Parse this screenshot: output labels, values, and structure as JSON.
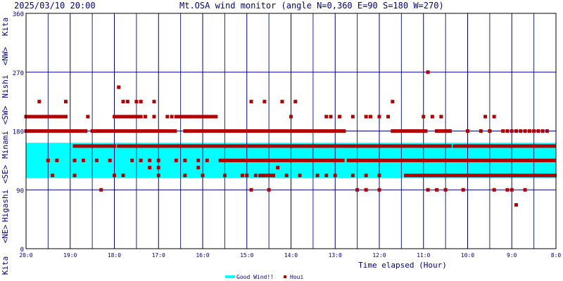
{
  "header": {
    "timestamp": "2025/03/10 20:00",
    "title": "Mt.OSA wind monitor (angle N=0,360 E=90 S=180 W=270)"
  },
  "side_labels": {
    "kita_top": "Kita",
    "nw": "<NW>",
    "nishi": "Nishi",
    "sw": "<SW>",
    "minami": "Minami",
    "se": "<SE>",
    "higashi": "Higashi",
    "ne": "<NE>",
    "kita_bottom": "Kita"
  },
  "colors": {
    "plot_bg": "#ffffff",
    "frame": "#000000",
    "grid_major": "#000080",
    "grid_minor": "#1a2a7a",
    "good_band": "#00ffff",
    "points": "#b00000",
    "title_text": "#000080"
  },
  "chart_data": {
    "type": "scatter",
    "title": "Mt.OSA wind monitor (angle N=0,360 E=90 S=180 W=270)",
    "xlabel": "Time elapsed (Hour)",
    "ylabel": "",
    "ylim": [
      0,
      360
    ],
    "xlim": [
      0,
      12
    ],
    "x_direction": "time runs backwards from 20:00 at left to 8:00 at right",
    "yticks": [
      0,
      90,
      180,
      270,
      360
    ],
    "xtick_labels": [
      "20:0",
      "19:0",
      "18:0",
      "17:0",
      "16:0",
      "15:0",
      "14:0",
      "13:0",
      "12:0",
      "11:0",
      "10:0",
      "9:0",
      "8:0"
    ],
    "grid": true,
    "legend": {
      "placement": "bottom-center",
      "entries": [
        "Good Wind!!",
        "Houi"
      ]
    },
    "good_wind_band": {
      "label": "Good Wind!!",
      "from_deg": 108,
      "to_deg": 162
    },
    "series": [
      {
        "name": "Houi",
        "runs": [
          {
            "from_h": 0.0,
            "to_h": 1.4,
            "deg": 180
          },
          {
            "from_h": 0.0,
            "to_h": 0.9,
            "deg": 202
          },
          {
            "from_h": 1.5,
            "to_h": 3.4,
            "deg": 180
          },
          {
            "from_h": 1.1,
            "to_h": 2.0,
            "deg": 157
          },
          {
            "from_h": 2.1,
            "to_h": 3.5,
            "deg": 157
          },
          {
            "from_h": 3.6,
            "to_h": 7.2,
            "deg": 180
          },
          {
            "from_h": 3.5,
            "to_h": 6.8,
            "deg": 157
          },
          {
            "from_h": 6.0,
            "to_h": 9.6,
            "deg": 157
          },
          {
            "from_h": 9.7,
            "to_h": 12.0,
            "deg": 157
          },
          {
            "from_h": 4.4,
            "to_h": 7.2,
            "deg": 135
          },
          {
            "from_h": 7.3,
            "to_h": 12.0,
            "deg": 135
          },
          {
            "from_h": 8.6,
            "to_h": 12.0,
            "deg": 112
          },
          {
            "from_h": 5.3,
            "to_h": 5.6,
            "deg": 112
          },
          {
            "from_h": 8.3,
            "to_h": 9.1,
            "deg": 180
          },
          {
            "from_h": 9.3,
            "to_h": 9.6,
            "deg": 180
          },
          {
            "from_h": 2.0,
            "to_h": 2.6,
            "deg": 202
          },
          {
            "from_h": 3.4,
            "to_h": 4.3,
            "deg": 202
          }
        ],
        "points": [
          [
            0.3,
            225
          ],
          [
            0.9,
            225
          ],
          [
            2.1,
            247
          ],
          [
            2.2,
            225
          ],
          [
            2.3,
            225
          ],
          [
            2.5,
            225
          ],
          [
            2.6,
            225
          ],
          [
            2.9,
            225
          ],
          [
            5.1,
            225
          ],
          [
            5.4,
            225
          ],
          [
            5.8,
            225
          ],
          [
            6.1,
            225
          ],
          [
            8.3,
            225
          ],
          [
            9.1,
            270
          ],
          [
            0.9,
            202
          ],
          [
            1.4,
            202
          ],
          [
            2.7,
            202
          ],
          [
            2.9,
            202
          ],
          [
            3.2,
            202
          ],
          [
            3.3,
            202
          ],
          [
            3.6,
            202
          ],
          [
            3.7,
            202
          ],
          [
            4.1,
            202
          ],
          [
            6.0,
            202
          ],
          [
            6.8,
            202
          ],
          [
            6.9,
            202
          ],
          [
            7.1,
            202
          ],
          [
            7.4,
            202
          ],
          [
            7.7,
            202
          ],
          [
            7.8,
            202
          ],
          [
            8.0,
            202
          ],
          [
            8.2,
            202
          ],
          [
            9.0,
            202
          ],
          [
            9.2,
            202
          ],
          [
            9.4,
            202
          ],
          [
            10.4,
            202
          ],
          [
            10.6,
            202
          ],
          [
            10.0,
            180
          ],
          [
            10.3,
            180
          ],
          [
            10.5,
            180
          ],
          [
            10.8,
            180
          ],
          [
            10.9,
            180
          ],
          [
            11.0,
            180
          ],
          [
            11.1,
            180
          ],
          [
            11.2,
            180
          ],
          [
            11.3,
            180
          ],
          [
            11.4,
            180
          ],
          [
            11.5,
            180
          ],
          [
            11.6,
            180
          ],
          [
            11.7,
            180
          ],
          [
            11.8,
            180
          ],
          [
            0.5,
            135
          ],
          [
            0.7,
            135
          ],
          [
            1.1,
            135
          ],
          [
            1.3,
            135
          ],
          [
            1.6,
            135
          ],
          [
            1.9,
            135
          ],
          [
            2.4,
            135
          ],
          [
            2.6,
            135
          ],
          [
            2.8,
            135
          ],
          [
            3.0,
            135
          ],
          [
            3.4,
            135
          ],
          [
            3.6,
            135
          ],
          [
            3.9,
            135
          ],
          [
            4.1,
            135
          ],
          [
            2.8,
            124
          ],
          [
            3.0,
            124
          ],
          [
            3.9,
            124
          ],
          [
            5.7,
            124
          ],
          [
            0.6,
            112
          ],
          [
            1.1,
            112
          ],
          [
            2.0,
            112
          ],
          [
            2.2,
            112
          ],
          [
            3.0,
            112
          ],
          [
            3.6,
            112
          ],
          [
            4.0,
            112
          ],
          [
            4.5,
            112
          ],
          [
            4.9,
            112
          ],
          [
            5.0,
            112
          ],
          [
            5.2,
            112
          ],
          [
            5.3,
            112
          ],
          [
            5.6,
            112
          ],
          [
            5.9,
            112
          ],
          [
            6.2,
            112
          ],
          [
            6.6,
            112
          ],
          [
            6.8,
            112
          ],
          [
            7.0,
            112
          ],
          [
            7.4,
            112
          ],
          [
            7.7,
            112
          ],
          [
            8.0,
            112
          ],
          [
            1.7,
            90
          ],
          [
            5.1,
            90
          ],
          [
            5.5,
            90
          ],
          [
            7.5,
            90
          ],
          [
            7.7,
            90
          ],
          [
            8.0,
            90
          ],
          [
            9.1,
            90
          ],
          [
            9.3,
            90
          ],
          [
            9.5,
            90
          ],
          [
            9.9,
            90
          ],
          [
            10.6,
            90
          ],
          [
            10.9,
            90
          ],
          [
            11.0,
            90
          ],
          [
            11.3,
            90
          ],
          [
            11.1,
            67
          ]
        ]
      }
    ]
  }
}
